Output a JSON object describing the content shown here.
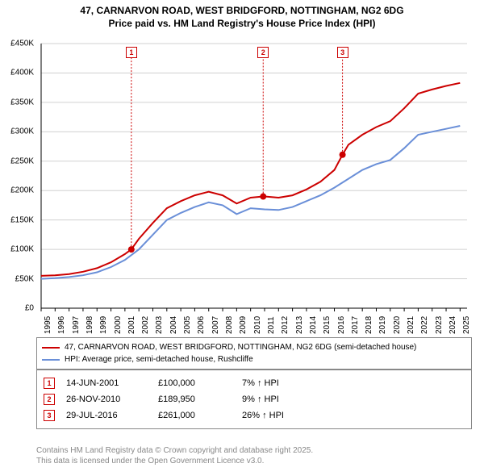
{
  "title_line1": "47, CARNARVON ROAD, WEST BRIDGFORD, NOTTINGHAM, NG2 6DG",
  "title_line2": "Price paid vs. HM Land Registry's House Price Index (HPI)",
  "chart": {
    "type": "line",
    "background_color": "#ffffff",
    "plot_bg_color": "#ffffff",
    "grid_color": "#d0d0d0",
    "axis_color": "#000000",
    "xlim_year": [
      1995,
      2025.5
    ],
    "ylim_gbp": [
      0,
      450000
    ],
    "yticks": [
      0,
      50000,
      100000,
      150000,
      200000,
      250000,
      300000,
      350000,
      400000,
      450000
    ],
    "ytick_labels": [
      "£0",
      "£50K",
      "£100K",
      "£150K",
      "£200K",
      "£250K",
      "£300K",
      "£350K",
      "£400K",
      "£450K"
    ],
    "xticks": [
      1995,
      1996,
      1997,
      1998,
      1999,
      2000,
      2001,
      2002,
      2003,
      2004,
      2005,
      2006,
      2007,
      2008,
      2009,
      2010,
      2011,
      2012,
      2013,
      2014,
      2015,
      2016,
      2017,
      2018,
      2019,
      2020,
      2021,
      2022,
      2023,
      2024,
      2025
    ],
    "title_fontsize": 12,
    "tick_fontsize": 10,
    "series": [
      {
        "name": "property",
        "color": "#cc0000",
        "line_width": 2,
        "label": "47, CARNARVON ROAD, WEST BRIDGFORD, NOTTINGHAM, NG2 6DG (semi-detached house)",
        "points": [
          [
            1995,
            55000
          ],
          [
            1996,
            56000
          ],
          [
            1997,
            58000
          ],
          [
            1998,
            62000
          ],
          [
            1999,
            68000
          ],
          [
            2000,
            78000
          ],
          [
            2001,
            92000
          ],
          [
            2001.46,
            100000
          ],
          [
            2002,
            118000
          ],
          [
            2003,
            145000
          ],
          [
            2004,
            170000
          ],
          [
            2005,
            182000
          ],
          [
            2006,
            192000
          ],
          [
            2007,
            198000
          ],
          [
            2008,
            192000
          ],
          [
            2009,
            178000
          ],
          [
            2010,
            188000
          ],
          [
            2010.9,
            189950
          ],
          [
            2011,
            190000
          ],
          [
            2012,
            188000
          ],
          [
            2013,
            192000
          ],
          [
            2014,
            202000
          ],
          [
            2015,
            215000
          ],
          [
            2016,
            235000
          ],
          [
            2016.58,
            261000
          ],
          [
            2017,
            278000
          ],
          [
            2018,
            295000
          ],
          [
            2019,
            308000
          ],
          [
            2020,
            318000
          ],
          [
            2021,
            340000
          ],
          [
            2022,
            365000
          ],
          [
            2023,
            372000
          ],
          [
            2024,
            378000
          ],
          [
            2025,
            383000
          ]
        ]
      },
      {
        "name": "hpi",
        "color": "#6a8fd8",
        "line_width": 2,
        "label": "HPI: Average price, semi-detached house, Rushcliffe",
        "points": [
          [
            1995,
            50000
          ],
          [
            1996,
            51000
          ],
          [
            1997,
            53000
          ],
          [
            1998,
            56000
          ],
          [
            1999,
            61000
          ],
          [
            2000,
            70000
          ],
          [
            2001,
            82000
          ],
          [
            2002,
            100000
          ],
          [
            2003,
            125000
          ],
          [
            2004,
            150000
          ],
          [
            2005,
            162000
          ],
          [
            2006,
            172000
          ],
          [
            2007,
            180000
          ],
          [
            2008,
            175000
          ],
          [
            2009,
            160000
          ],
          [
            2010,
            170000
          ],
          [
            2011,
            168000
          ],
          [
            2012,
            167000
          ],
          [
            2013,
            172000
          ],
          [
            2014,
            182000
          ],
          [
            2015,
            192000
          ],
          [
            2016,
            205000
          ],
          [
            2017,
            220000
          ],
          [
            2018,
            235000
          ],
          [
            2019,
            245000
          ],
          [
            2020,
            252000
          ],
          [
            2021,
            272000
          ],
          [
            2022,
            295000
          ],
          [
            2023,
            300000
          ],
          [
            2024,
            305000
          ],
          [
            2025,
            310000
          ]
        ]
      }
    ],
    "sale_markers": [
      {
        "n": "1",
        "year": 2001.46,
        "value": 100000,
        "date": "14-JUN-2001",
        "price": "£100,000",
        "pct": "7% ↑ HPI"
      },
      {
        "n": "2",
        "year": 2010.9,
        "value": 189950,
        "date": "26-NOV-2010",
        "price": "£189,950",
        "pct": "9% ↑ HPI"
      },
      {
        "n": "3",
        "year": 2016.58,
        "value": 261000,
        "date": "29-JUL-2016",
        "price": "£261,000",
        "pct": "26% ↑ HPI"
      }
    ],
    "marker_dot_color": "#cc0000",
    "marker_dot_radius": 4,
    "marker_badge_border": "#cc0000",
    "marker_badge_text": "#cc0000",
    "marker_line_color": "#cc0000"
  },
  "legend": {
    "border_color": "#888888",
    "fontsize": 10
  },
  "footer_line1": "Contains HM Land Registry data © Crown copyright and database right 2025.",
  "footer_line2": "This data is licensed under the Open Government Licence v3.0.",
  "footer_color": "#888888"
}
